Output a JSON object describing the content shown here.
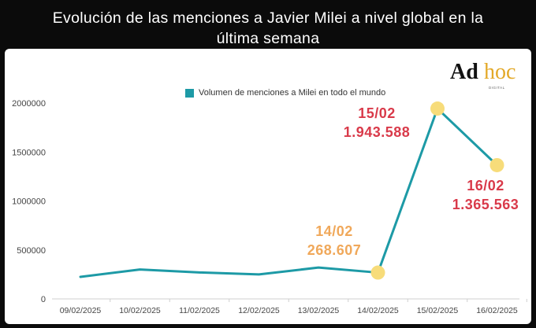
{
  "title_line1": "Evolución de las menciones a Javier Milei a nivel global en la",
  "title_line2": "última semana",
  "logo": {
    "main": "Ad",
    "accent": "hoc",
    "sub": "DIGITAL"
  },
  "colors": {
    "line": "#1d9aa6",
    "highlight": "#f7dc7a",
    "orange": "#f0a85a",
    "red": "#d93a4a"
  },
  "annotations": [
    {
      "date": "14/02",
      "value": "268.607"
    },
    {
      "date": "15/02",
      "value": "1.943.588"
    },
    {
      "date": "16/02",
      "value": "1.365.563"
    }
  ],
  "chart_data": {
    "type": "line",
    "title": "Evolución de las menciones a Javier Milei a nivel global en la última semana",
    "categories": [
      "09/02/2025",
      "10/02/2025",
      "11/02/2025",
      "12/02/2025",
      "13/02/2025",
      "14/02/2025",
      "15/02/2025",
      "16/02/2025"
    ],
    "series": [
      {
        "name": "Volumen de menciones a Milei en todo el mundo",
        "values": [
          225000,
          300000,
          270000,
          250000,
          320000,
          268607,
          1943588,
          1365563
        ]
      }
    ],
    "highlighted_points": [
      "14/02/2025",
      "15/02/2025",
      "16/02/2025"
    ],
    "yticks": [
      "0",
      "500000",
      "1000000",
      "1500000",
      "2000000"
    ],
    "ylim": [
      0,
      2000000
    ],
    "xlabel": "",
    "ylabel": "",
    "grid": false,
    "legend_position": "top"
  }
}
